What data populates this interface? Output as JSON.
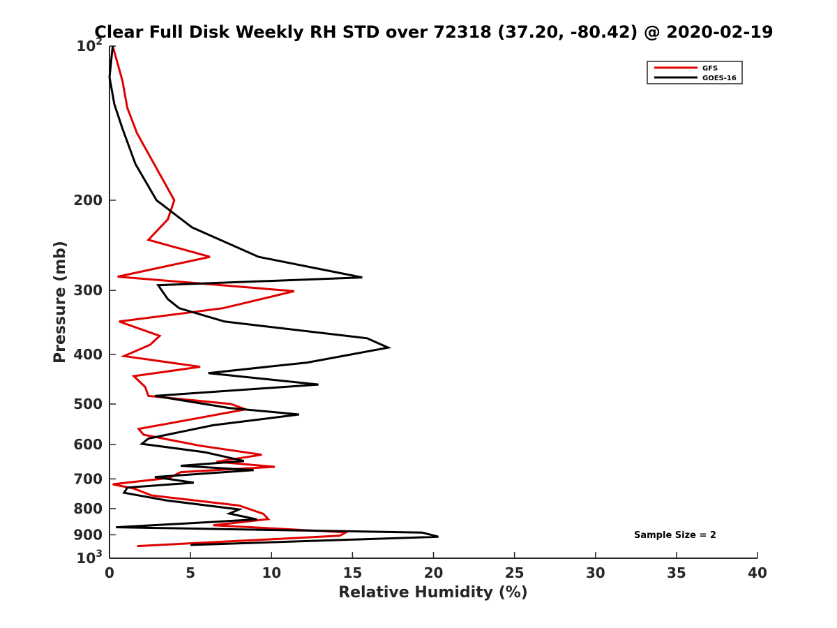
{
  "chart_data": {
    "type": "line",
    "title": "Clear Full Disk Weekly RH STD over 72318 (37.20, -80.42) @ 2020-02-19",
    "xlabel": "Relative Humidity (%)",
    "ylabel": "Pressure (mb)",
    "xlim": [
      0,
      40
    ],
    "ylim": [
      100,
      1000
    ],
    "y_scale": "log",
    "y_reversed": true,
    "x_ticks": [
      0,
      5,
      10,
      15,
      20,
      25,
      30,
      35,
      40
    ],
    "x_tick_labels": [
      "0",
      "5",
      "10",
      "15",
      "20",
      "25",
      "30",
      "35",
      "40"
    ],
    "y_ticks": [
      100,
      200,
      300,
      400,
      500,
      600,
      700,
      800,
      900,
      1000
    ],
    "y_tick_labels": [
      {
        "base": "10",
        "exp": "2"
      },
      {
        "base": "200",
        "exp": ""
      },
      {
        "base": "300",
        "exp": ""
      },
      {
        "base": "400",
        "exp": ""
      },
      {
        "base": "500",
        "exp": ""
      },
      {
        "base": "600",
        "exp": ""
      },
      {
        "base": "700",
        "exp": ""
      },
      {
        "base": "800",
        "exp": ""
      },
      {
        "base": "900",
        "exp": ""
      },
      {
        "base": "10",
        "exp": "3"
      }
    ],
    "legend_position": "top-right",
    "grid": false,
    "annotation": "Sample Size = 2",
    "series": [
      {
        "name": "GFS",
        "color": "#e00000",
        "points": [
          [
            0.2,
            100
          ],
          [
            0.8,
            117
          ],
          [
            1.1,
            132
          ],
          [
            1.7,
            148
          ],
          [
            4.0,
            200
          ],
          [
            3.6,
            218
          ],
          [
            2.4,
            239
          ],
          [
            6.2,
            258
          ],
          [
            0.5,
            282
          ],
          [
            11.4,
            301
          ],
          [
            7.0,
            325
          ],
          [
            0.6,
            345
          ],
          [
            3.1,
            368
          ],
          [
            2.5,
            383
          ],
          [
            0.9,
            403
          ],
          [
            5.6,
            423
          ],
          [
            1.5,
            441
          ],
          [
            2.2,
            463
          ],
          [
            2.4,
            482
          ],
          [
            7.5,
            500
          ],
          [
            8.4,
            512
          ],
          [
            5.0,
            536
          ],
          [
            1.8,
            559
          ],
          [
            2.1,
            574
          ],
          [
            5.6,
            603
          ],
          [
            9.4,
            628
          ],
          [
            6.6,
            648
          ],
          [
            10.2,
            663
          ],
          [
            4.4,
            679
          ],
          [
            3.7,
            697
          ],
          [
            0.2,
            717
          ],
          [
            1.5,
            731
          ],
          [
            2.6,
            754
          ],
          [
            8.0,
            789
          ],
          [
            9.5,
            819
          ],
          [
            9.8,
            839
          ],
          [
            6.4,
            862
          ],
          [
            14.6,
            890
          ],
          [
            14.2,
            904
          ],
          [
            1.7,
            947
          ]
        ]
      },
      {
        "name": "GOES-16",
        "color": "#000000",
        "points": [
          [
            0.2,
            100
          ],
          [
            0.0,
            115
          ],
          [
            0.3,
            130
          ],
          [
            0.8,
            145
          ],
          [
            1.6,
            170
          ],
          [
            2.9,
            200
          ],
          [
            5.1,
            226
          ],
          [
            9.2,
            258
          ],
          [
            15.6,
            283
          ],
          [
            3.0,
            293
          ],
          [
            3.6,
            312
          ],
          [
            4.3,
            325
          ],
          [
            7.1,
            345
          ],
          [
            15.9,
            372
          ],
          [
            17.2,
            388
          ],
          [
            12.2,
            415
          ],
          [
            6.1,
            435
          ],
          [
            12.9,
            458
          ],
          [
            2.8,
            482
          ],
          [
            7.4,
            509
          ],
          [
            11.7,
            524
          ],
          [
            6.4,
            550
          ],
          [
            2.4,
            584
          ],
          [
            2.0,
            598
          ],
          [
            5.9,
            621
          ],
          [
            8.3,
            646
          ],
          [
            4.4,
            660
          ],
          [
            8.9,
            673
          ],
          [
            2.8,
            694
          ],
          [
            5.2,
            712
          ],
          [
            1.1,
            728
          ],
          [
            0.9,
            745
          ],
          [
            3.5,
            771
          ],
          [
            8.0,
            803
          ],
          [
            7.4,
            818
          ],
          [
            9.1,
            840
          ],
          [
            5.7,
            852
          ],
          [
            0.4,
            870
          ],
          [
            19.3,
            891
          ],
          [
            20.3,
            908
          ],
          [
            5.0,
            942
          ]
        ]
      }
    ]
  }
}
